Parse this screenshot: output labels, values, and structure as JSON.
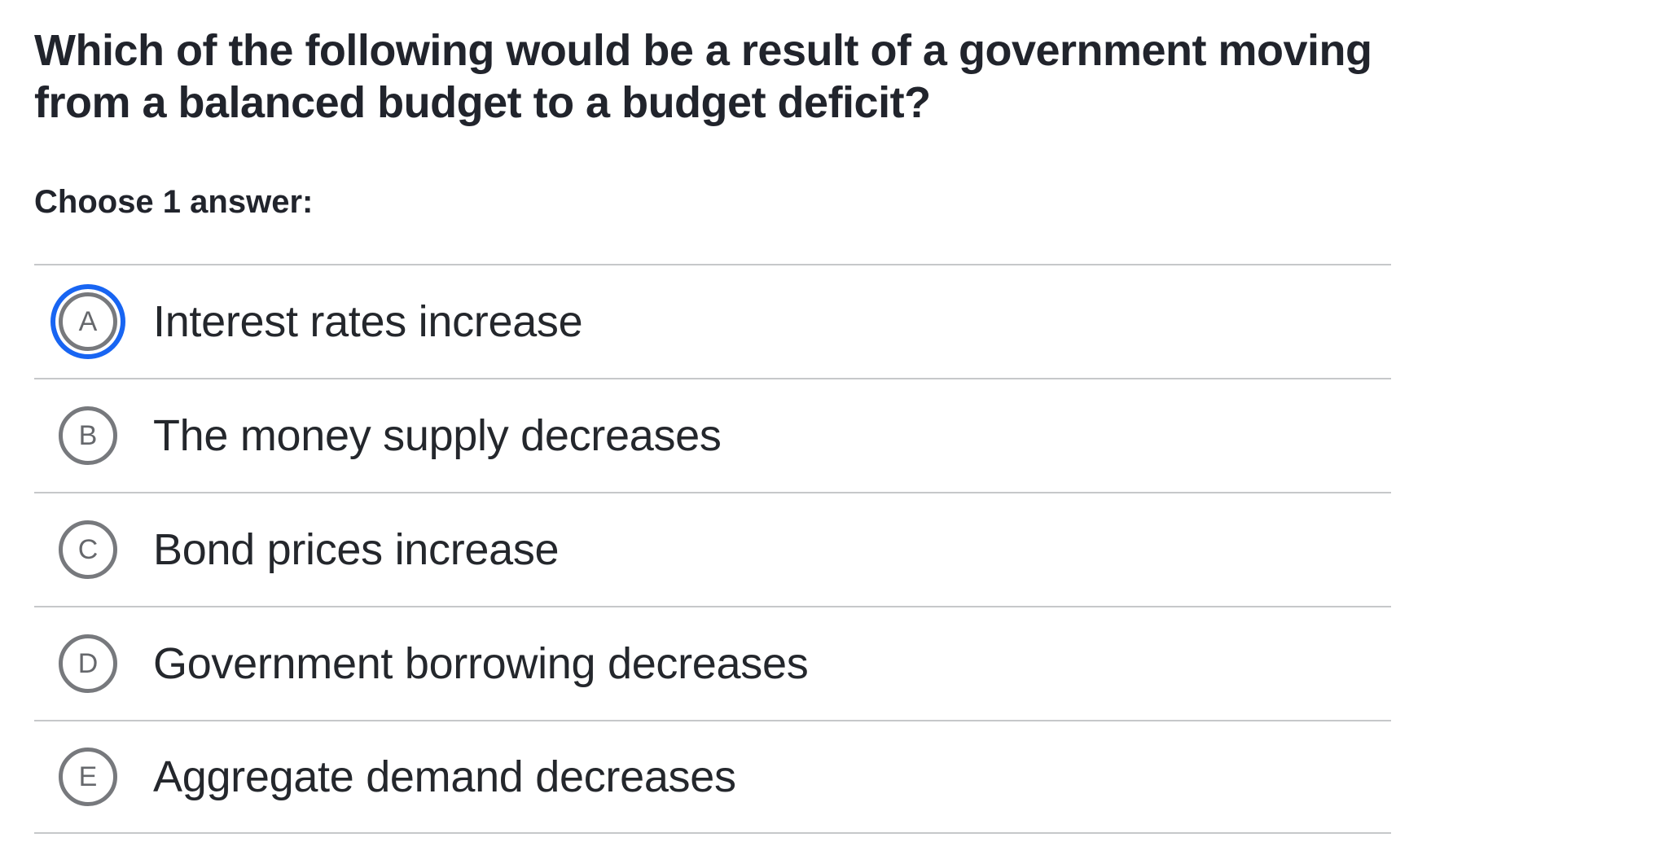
{
  "question": {
    "title": "Which of the following would be a result of a government moving from a balanced budget to a budget deficit?",
    "prompt": "Choose 1 answer:"
  },
  "choices": [
    {
      "letter": "A",
      "text": "Interest rates increase",
      "selected": "true"
    },
    {
      "letter": "B",
      "text": "The money supply decreases",
      "selected": "false"
    },
    {
      "letter": "C",
      "text": "Bond prices increase",
      "selected": "false"
    },
    {
      "letter": "D",
      "text": "Government borrowing decreases",
      "selected": "false"
    },
    {
      "letter": "E",
      "text": "Aggregate demand decreases",
      "selected": "false"
    }
  ],
  "colors": {
    "accent_blue": "#1865f2",
    "radio_border_gray": "#77797d",
    "text_dark": "#21242c",
    "divider_gray": "#c6c8ca",
    "background": "#ffffff"
  }
}
